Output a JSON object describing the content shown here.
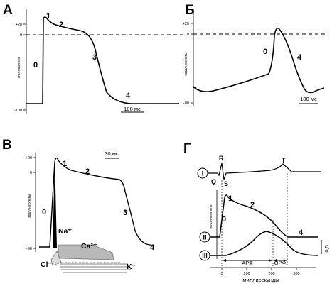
{
  "panels": {
    "a": {
      "letter": "А",
      "ylabel": "миллвольты",
      "ticks": [
        "+20",
        "0",
        "-100"
      ],
      "phases": [
        "0",
        "1",
        "2",
        "3",
        "4"
      ],
      "scalebar": "100 мс"
    },
    "b": {
      "letter": "Б",
      "ylabel": "милливольты",
      "ticks": [
        "+20",
        "0",
        "-80"
      ],
      "phases": [
        "0",
        "3",
        "4"
      ],
      "scalebar": "100 мс"
    },
    "v": {
      "letter": "В",
      "ylabel": "милливольты",
      "ticks": [
        "+20",
        "0",
        "-90"
      ],
      "phases": [
        "0",
        "1",
        "2",
        "3",
        "4"
      ],
      "scalebar": "30 мс",
      "ions": {
        "na": "Na⁺",
        "ca": "Ca²⁺",
        "cl": "Cl⁻",
        "k": "K⁺"
      }
    },
    "g": {
      "letter": "Г",
      "ylabel": "милливольты",
      "row_labels": [
        "I",
        "II",
        "III"
      ],
      "ecg_waves": [
        "R",
        "Q",
        "S",
        "T"
      ],
      "phases": [
        "0",
        "1",
        "2",
        "4"
      ],
      "arp": "АРФ",
      "orp": "ОРФ",
      "x_ticks": [
        "0",
        "100",
        "200",
        "300"
      ],
      "xlabel": "миллисекунды",
      "side_label": "0,5 г"
    }
  }
}
